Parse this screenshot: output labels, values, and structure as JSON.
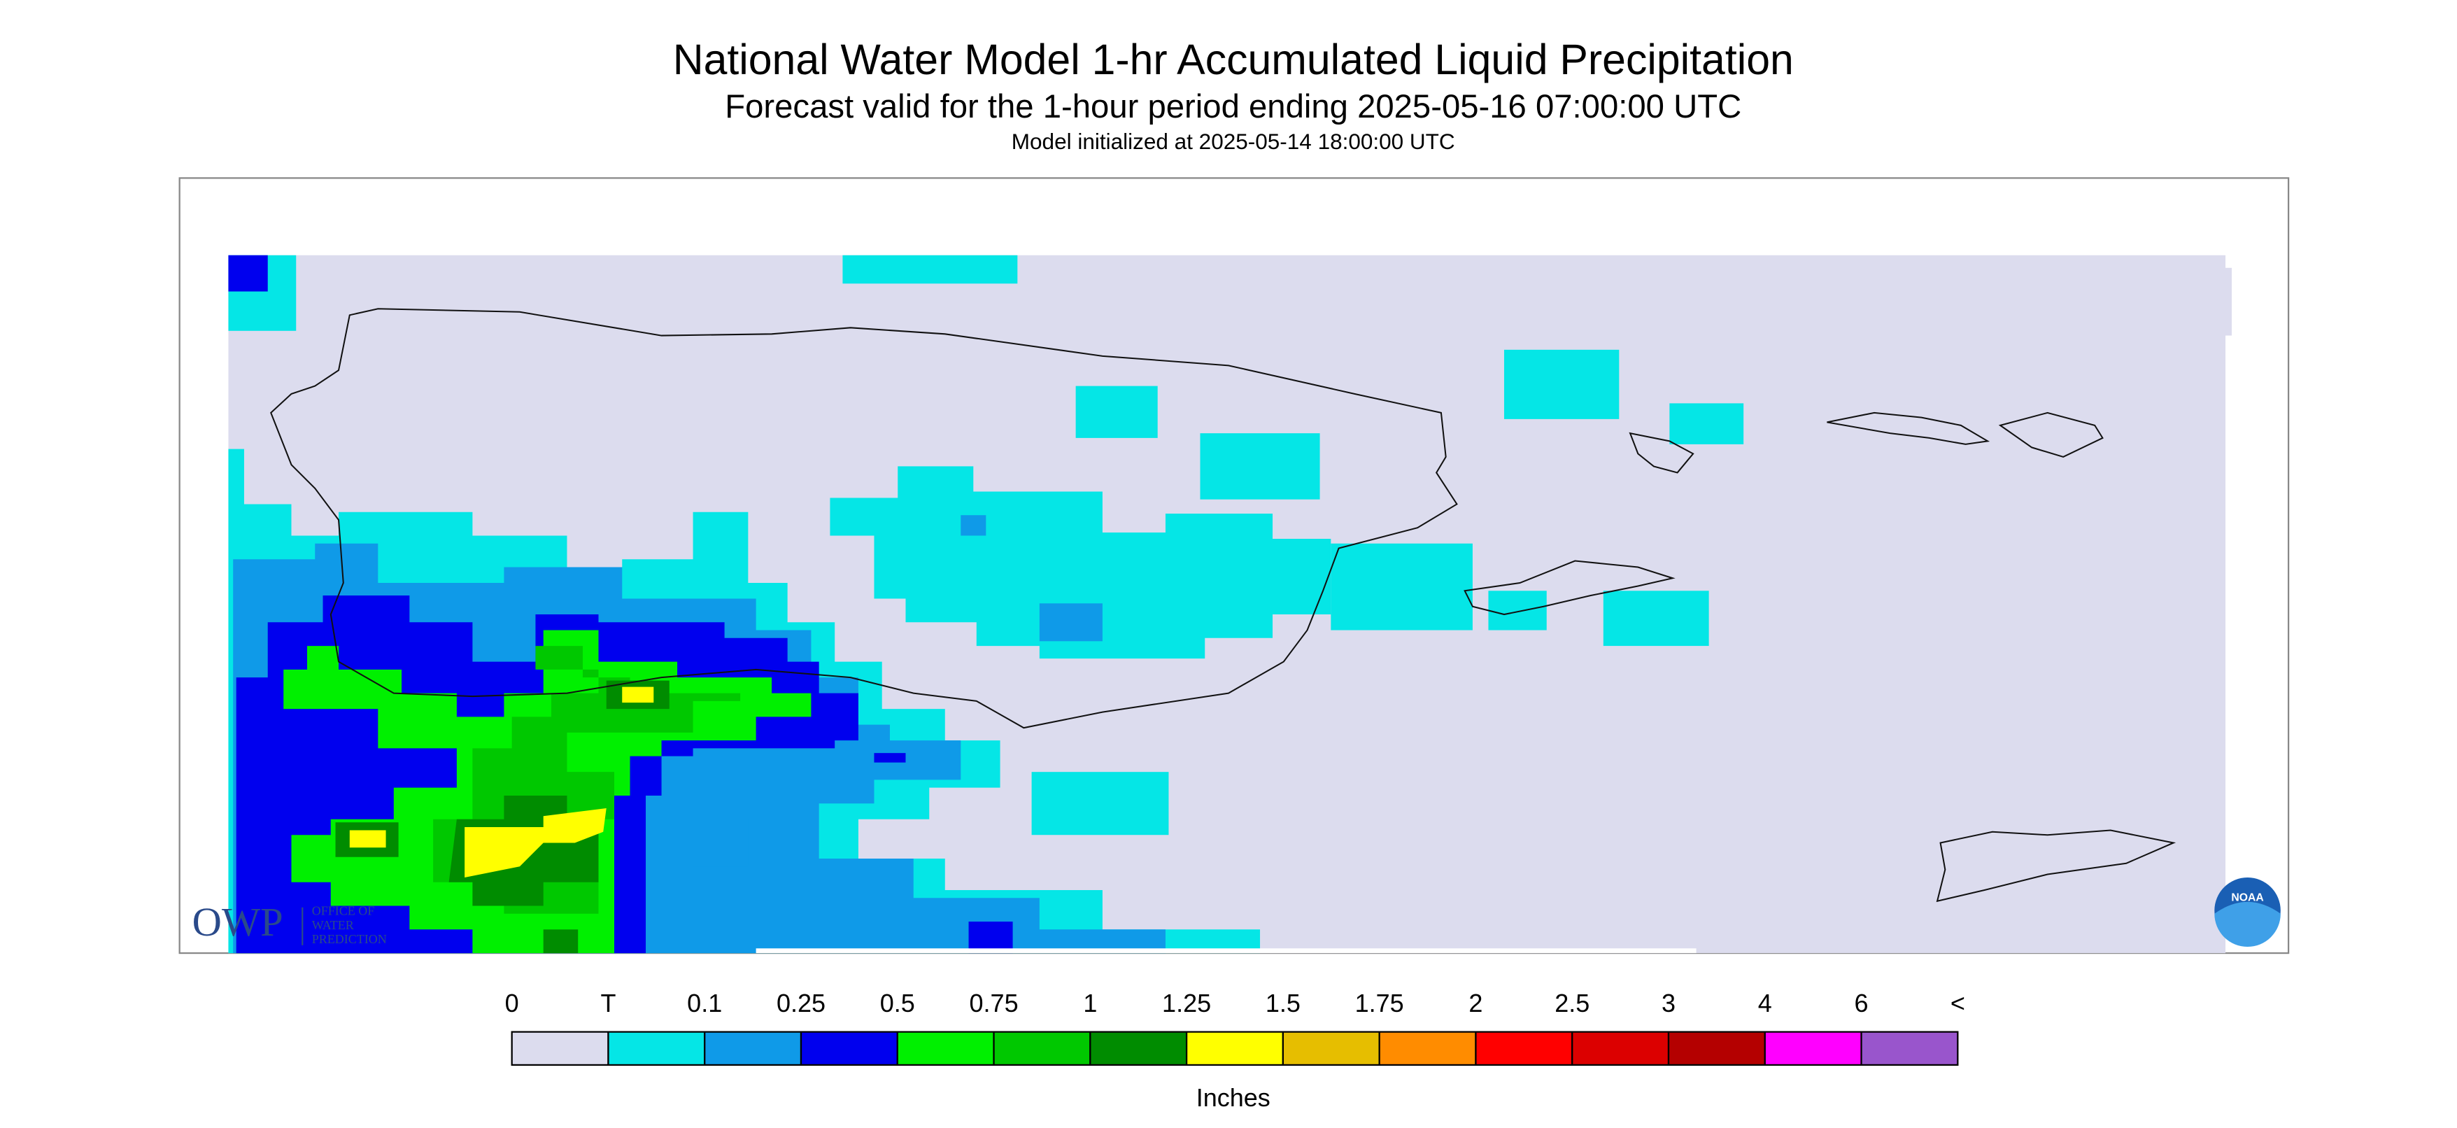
{
  "header": {
    "title": "National Water Model 1-hr Accumulated Liquid Precipitation",
    "subtitle": "Forecast valid for the 1-hour period ending 2025-05-16 07:00:00 UTC",
    "initialized": "Model initialized at 2025-05-14 18:00:00 UTC"
  },
  "legend": {
    "labels": [
      0,
      "T",
      0.1,
      0.25,
      0.5,
      0.75,
      1,
      1.25,
      1.5,
      1.75,
      2,
      2.5,
      3,
      4,
      6,
      "<"
    ],
    "colors": [
      "#dcdcee",
      "#05e6e6",
      "#0f9ae8",
      "#0000ee",
      "#00f000",
      "#00c800",
      "#008c00",
      "#ffff00",
      "#e6be00",
      "#ff8c00",
      "#ff0000",
      "#dc0000",
      "#b40000",
      "#ff00ff",
      "#9955cc"
    ],
    "unit": "Inches"
  },
  "logo": {
    "acronym": "OWP",
    "lines": [
      "OFFICE OF",
      "WATER",
      "PREDICTION"
    ],
    "noaa": "NOAA"
  }
}
